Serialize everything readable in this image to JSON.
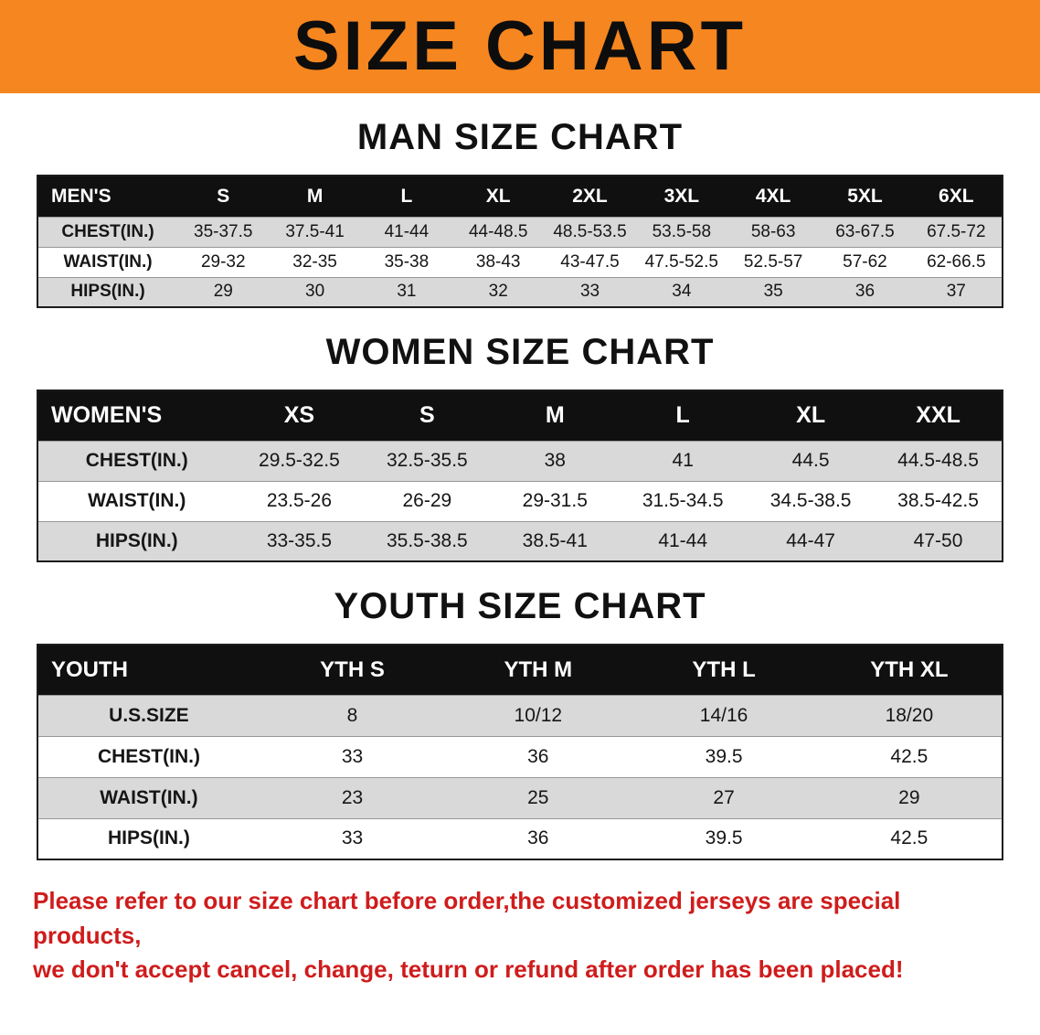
{
  "banner": {
    "title": "SIZE CHART",
    "bg_color": "#f6861f"
  },
  "sections": [
    {
      "heading": "MAN SIZE CHART",
      "table": {
        "header": [
          "MEN'S",
          "S",
          "M",
          "L",
          "XL",
          "2XL",
          "3XL",
          "4XL",
          "5XL",
          "6XL"
        ],
        "rows": [
          {
            "label": "CHEST(IN.)",
            "values": [
              "35-37.5",
              "37.5-41",
              "41-44",
              "44-48.5",
              "48.5-53.5",
              "53.5-58",
              "58-63",
              "63-67.5",
              "67.5-72"
            ]
          },
          {
            "label": "WAIST(IN.)",
            "values": [
              "29-32",
              "32-35",
              "35-38",
              "38-43",
              "43-47.5",
              "47.5-52.5",
              "52.5-57",
              "57-62",
              "62-66.5"
            ]
          },
          {
            "label": "HIPS(IN.)",
            "values": [
              "29",
              "30",
              "31",
              "32",
              "33",
              "34",
              "35",
              "36",
              "37"
            ]
          }
        ]
      }
    },
    {
      "heading": "WOMEN SIZE CHART",
      "table": {
        "header": [
          "WOMEN'S",
          "XS",
          "S",
          "M",
          "L",
          "XL",
          "XXL"
        ],
        "rows": [
          {
            "label": "CHEST(IN.)",
            "values": [
              "29.5-32.5",
              "32.5-35.5",
              "38",
              "41",
              "44.5",
              "44.5-48.5"
            ]
          },
          {
            "label": "WAIST(IN.)",
            "values": [
              "23.5-26",
              "26-29",
              "29-31.5",
              "31.5-34.5",
              "34.5-38.5",
              "38.5-42.5"
            ]
          },
          {
            "label": "HIPS(IN.)",
            "values": [
              "33-35.5",
              "35.5-38.5",
              "38.5-41",
              "41-44",
              "44-47",
              "47-50"
            ]
          }
        ]
      }
    },
    {
      "heading": "YOUTH SIZE CHART",
      "table": {
        "header": [
          "YOUTH",
          "YTH S",
          "YTH M",
          "YTH L",
          "YTH XL"
        ],
        "rows": [
          {
            "label": "U.S.SIZE",
            "values": [
              "8",
              "10/12",
              "14/16",
              "18/20"
            ]
          },
          {
            "label": "CHEST(IN.)",
            "values": [
              "33",
              "36",
              "39.5",
              "42.5"
            ]
          },
          {
            "label": "WAIST(IN.)",
            "values": [
              "23",
              "25",
              "27",
              "29"
            ]
          },
          {
            "label": "HIPS(IN.)",
            "values": [
              "33",
              "36",
              "39.5",
              "42.5"
            ]
          }
        ]
      }
    }
  ],
  "footer": {
    "line1": "Please refer to our size chart before order,the customized jerseys are special products,",
    "line2": "we don't accept cancel, change, teturn or refund after order has been placed!"
  },
  "colors": {
    "banner_orange": "#f6861f",
    "table_header_black": "#101010",
    "row_gray": "#d9d9d9",
    "notice_red": "#cf1c1c"
  }
}
